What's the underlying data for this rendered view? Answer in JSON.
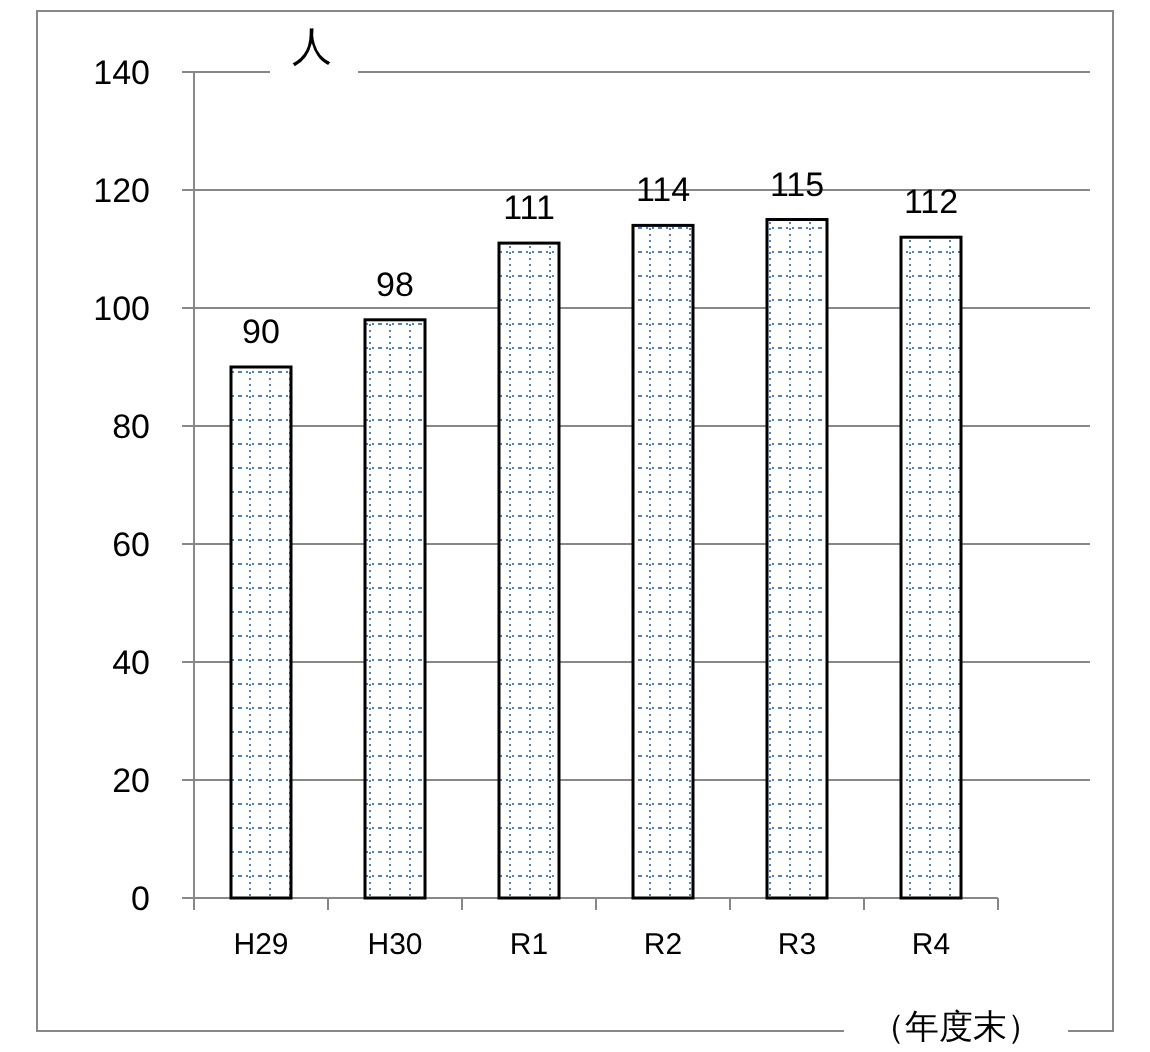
{
  "chart_data": {
    "type": "bar",
    "ylabel": "人",
    "xlabel": "（年度末）",
    "categories": [
      "H29",
      "H30",
      "R1",
      "R2",
      "R3",
      "R4"
    ],
    "values": [
      90,
      98,
      111,
      114,
      115,
      112
    ],
    "color": "#000000",
    "ylim": [
      0,
      140
    ],
    "yticks": [
      0,
      20,
      40,
      60,
      80,
      100,
      120,
      140
    ],
    "grid": "y",
    "data_labels": true
  }
}
